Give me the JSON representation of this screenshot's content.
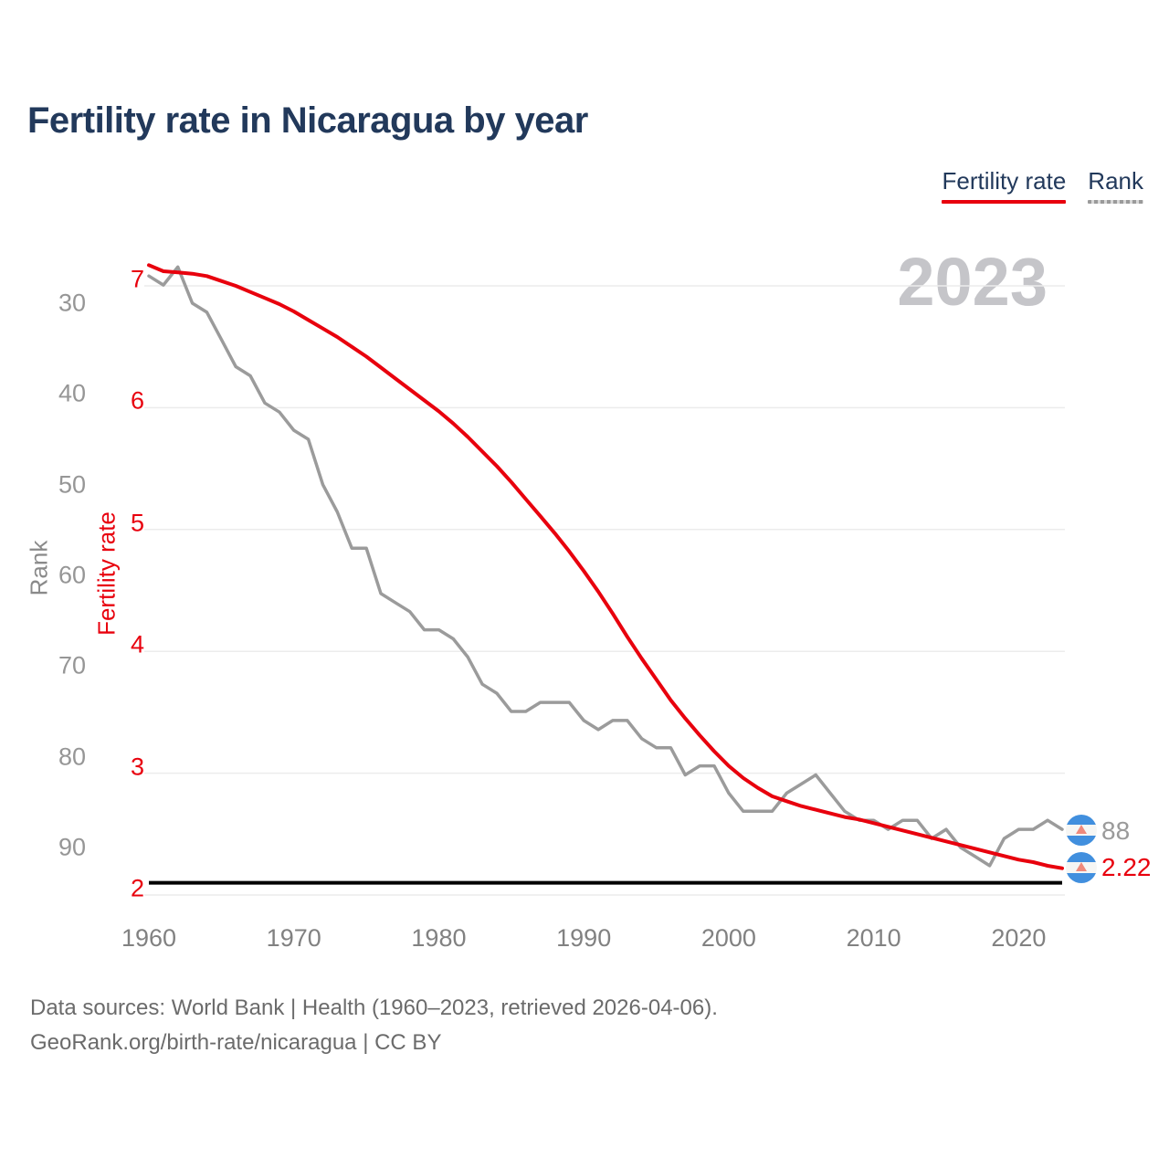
{
  "title": "Fertility rate in Nicaragua by year",
  "legend": [
    {
      "label": "Fertility rate",
      "color": "#e8000d"
    },
    {
      "label": "Rank",
      "color": "#9b9b9b"
    }
  ],
  "watermark": "2023",
  "end_labels": {
    "rank": "88",
    "fertility": "2.22"
  },
  "flag": {
    "name": "nicaragua-flag",
    "blue": "#418fde",
    "emblem": "#ef8a7c"
  },
  "footer": {
    "line1": "Data sources: World Bank | Health (1960–2023, retrieved 2026-04-06).",
    "line2": "GeoRank.org/birth-rate/nicaragua | CC BY"
  },
  "chart_data": {
    "type": "line",
    "title": "Fertility rate in Nicaragua by year",
    "x": [
      1960,
      1961,
      1962,
      1963,
      1964,
      1965,
      1966,
      1967,
      1968,
      1969,
      1970,
      1971,
      1972,
      1973,
      1974,
      1975,
      1976,
      1977,
      1978,
      1979,
      1980,
      1981,
      1982,
      1983,
      1984,
      1985,
      1986,
      1987,
      1988,
      1989,
      1990,
      1991,
      1992,
      1993,
      1994,
      1995,
      1996,
      1997,
      1998,
      1999,
      2000,
      2001,
      2002,
      2003,
      2004,
      2005,
      2006,
      2007,
      2008,
      2009,
      2010,
      2011,
      2012,
      2013,
      2014,
      2015,
      2016,
      2017,
      2018,
      2019,
      2020,
      2021,
      2022,
      2023
    ],
    "x_ticks": [
      1960,
      1970,
      1980,
      1990,
      2000,
      2010,
      2020
    ],
    "series": [
      {
        "name": "Fertility rate",
        "axis": "fertility",
        "color": "#e8000d",
        "values": [
          7.17,
          7.12,
          7.11,
          7.1,
          7.08,
          7.04,
          7.0,
          6.95,
          6.9,
          6.85,
          6.79,
          6.72,
          6.65,
          6.58,
          6.5,
          6.42,
          6.33,
          6.24,
          6.15,
          6.06,
          5.97,
          5.87,
          5.76,
          5.64,
          5.52,
          5.39,
          5.25,
          5.11,
          4.97,
          4.82,
          4.66,
          4.49,
          4.31,
          4.12,
          3.94,
          3.77,
          3.6,
          3.45,
          3.31,
          3.18,
          3.06,
          2.96,
          2.88,
          2.81,
          2.77,
          2.73,
          2.7,
          2.67,
          2.64,
          2.62,
          2.59,
          2.56,
          2.53,
          2.5,
          2.47,
          2.44,
          2.41,
          2.38,
          2.35,
          2.32,
          2.29,
          2.27,
          2.24,
          2.22
        ]
      },
      {
        "name": "Rank",
        "axis": "rank",
        "color": "#9b9b9b",
        "values": [
          27,
          28,
          26,
          30,
          31,
          34,
          37,
          38,
          41,
          42,
          44,
          45,
          50,
          53,
          57,
          57,
          62,
          63,
          64,
          66,
          66,
          67,
          69,
          72,
          73,
          75,
          75,
          74,
          74,
          74,
          76,
          77,
          76,
          76,
          78,
          79,
          79,
          82,
          81,
          81,
          84,
          86,
          86,
          86,
          84,
          83,
          82,
          84,
          86,
          87,
          87,
          88,
          87,
          87,
          89,
          88,
          90,
          91,
          92,
          89,
          88,
          88,
          87,
          88
        ]
      }
    ],
    "fertility_axis": {
      "label": "Fertility rate",
      "ticks": [
        7,
        6,
        5,
        4,
        3,
        2
      ],
      "color": "#e8000d"
    },
    "rank_axis": {
      "label": "Rank",
      "ticks": [
        30,
        40,
        50,
        60,
        70,
        80,
        90
      ],
      "inverted": true,
      "color": "#969696"
    },
    "reference_line": {
      "value": 2.1,
      "color": "#000000"
    },
    "grid": "horizontal",
    "gridline_color": "#ececec",
    "year_end": 2023,
    "latest": {
      "fertility": 2.22,
      "rank": 88
    }
  }
}
